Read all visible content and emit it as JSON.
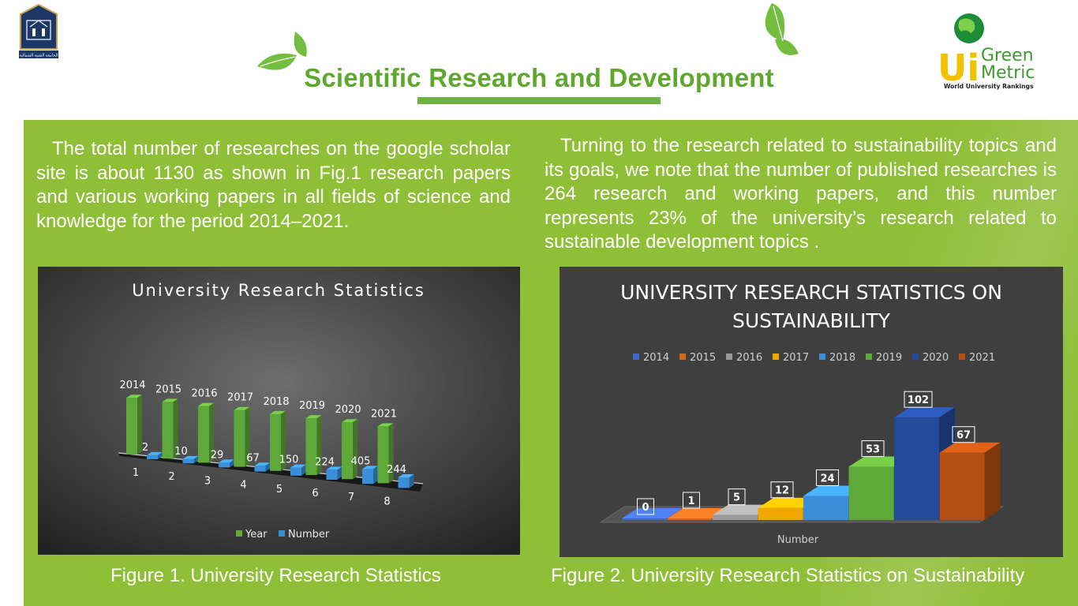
{
  "header": {
    "title": "Scientific Research and Development",
    "logo_left_label": "الجامعة التقنية الشمالية",
    "logo_right": {
      "line1": "Green",
      "line2": "Metric",
      "badge": "Ui",
      "subtitle": "World University Rankings"
    }
  },
  "left": {
    "paragraph": "The total number of researches on the google scholar site is about 1130 as shown in Fig.1 research papers and various working papers in all fields of science and knowledge for the period 2014–2021.",
    "caption": "Figure 1. University Research Statistics"
  },
  "right": {
    "paragraph": "Turning to the research related to sustainability topics and its goals, we note that the number of published researches is 264 research and working papers, and this number represents 23% of the university’s research related to sustainable development topics .",
    "caption": "Figure 2. University Research Statistics on Sustainability"
  },
  "colors": {
    "panel": "#8fbe37",
    "title": "#5fa82e",
    "year_bar": "#5fa83a",
    "number_bar": "#3a8fd8"
  },
  "chart_data": [
    {
      "type": "bar",
      "title": "University Research Statistics",
      "categories": [
        "1",
        "2",
        "3",
        "4",
        "5",
        "6",
        "7",
        "8"
      ],
      "series": [
        {
          "name": "Year",
          "values": [
            2014,
            2015,
            2016,
            2017,
            2018,
            2019,
            2020,
            2021
          ]
        },
        {
          "name": "Number",
          "values": [
            2,
            10,
            29,
            67,
            150,
            224,
            405,
            244
          ]
        }
      ],
      "legend": "bottom",
      "style": "3d-column"
    },
    {
      "type": "bar",
      "title": "UNIVERSITY RESEARCH STATISTICS ON SUSTAINABILITY",
      "categories": [
        "Number"
      ],
      "xlabel": "Number",
      "series": [
        {
          "name": "2014",
          "values": [
            0
          ],
          "color": "#3f68c4"
        },
        {
          "name": "2015",
          "values": [
            1
          ],
          "color": "#d2691e"
        },
        {
          "name": "2016",
          "values": [
            5
          ],
          "color": "#9a9a9a"
        },
        {
          "name": "2017",
          "values": [
            12
          ],
          "color": "#f0a800"
        },
        {
          "name": "2018",
          "values": [
            24
          ],
          "color": "#3a8fd8"
        },
        {
          "name": "2019",
          "values": [
            53
          ],
          "color": "#5fa83a"
        },
        {
          "name": "2020",
          "values": [
            102
          ],
          "color": "#244a9c"
        },
        {
          "name": "2021",
          "values": [
            67
          ],
          "color": "#b54e12"
        }
      ],
      "legend": "top",
      "style": "3d-column"
    }
  ]
}
